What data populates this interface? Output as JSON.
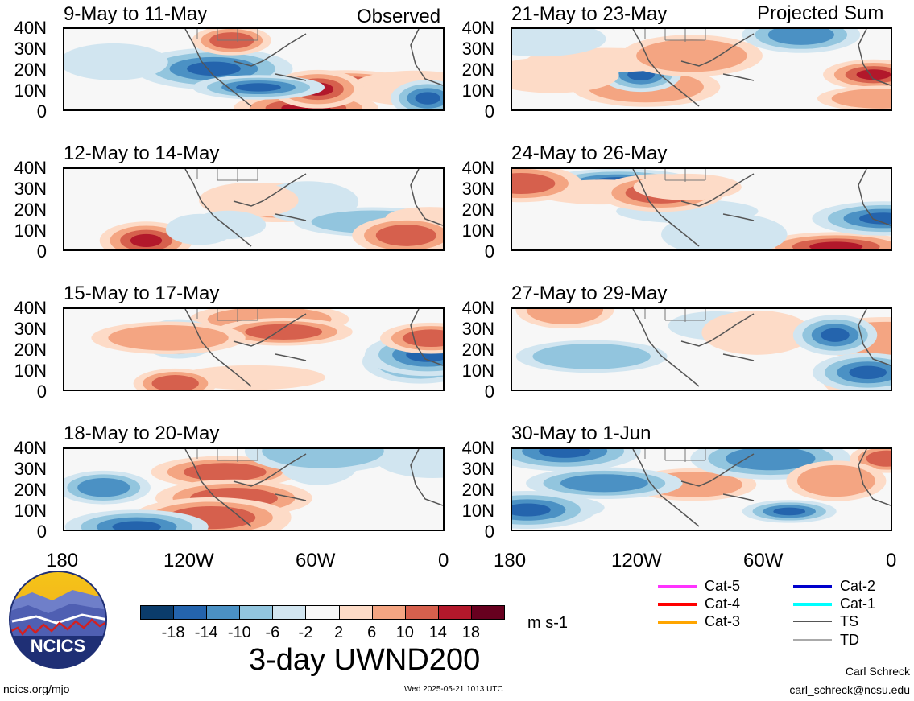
{
  "header": {
    "observed_label": "Observed",
    "projected_label": "Projected Sum"
  },
  "panels_left": [
    {
      "title": "9-May to 11-May"
    },
    {
      "title": "12-May to 14-May"
    },
    {
      "title": "15-May to 17-May"
    },
    {
      "title": "18-May to 20-May"
    }
  ],
  "panels_right": [
    {
      "title": "21-May to 23-May"
    },
    {
      "title": "24-May to 26-May"
    },
    {
      "title": "27-May to 29-May"
    },
    {
      "title": "30-May to 1-Jun"
    }
  ],
  "lat_labels": [
    "40N",
    "30N",
    "20N",
    "10N",
    "0"
  ],
  "lon_labels": [
    "180",
    "120W",
    "60W",
    "0"
  ],
  "colorbar": {
    "labels": [
      "-18",
      "-14",
      "-10",
      "-6",
      "-2",
      "2",
      "6",
      "10",
      "14",
      "18"
    ],
    "colors": [
      "#0b3c6b",
      "#2464ad",
      "#4b91c4",
      "#92c5de",
      "#d1e5f0",
      "#f7f7f7",
      "#fddbc7",
      "#f4a582",
      "#d6604d",
      "#b2182b",
      "#67001f"
    ],
    "units": "m s-1",
    "title": "3-day UWND200"
  },
  "legend": [
    {
      "label": "Cat-5",
      "color": "#ff33ff"
    },
    {
      "label": "Cat-4",
      "color": "#ff0000"
    },
    {
      "label": "Cat-3",
      "color": "#ffa500"
    },
    {
      "label": "Cat-2",
      "color": "#0000cc"
    },
    {
      "label": "Cat-1",
      "color": "#00ffff"
    },
    {
      "label": "TS",
      "color": "#555555"
    },
    {
      "label": "TD",
      "color": "#aaaaaa"
    }
  ],
  "footer": {
    "url": "ncics.org/mjo",
    "timestamp": "Wed 2025-05-21 1013 UTC",
    "author": "Carl Schreck",
    "email": "carl_schreck@ncsu.edu"
  },
  "logo": {
    "text": "NCICS"
  }
}
